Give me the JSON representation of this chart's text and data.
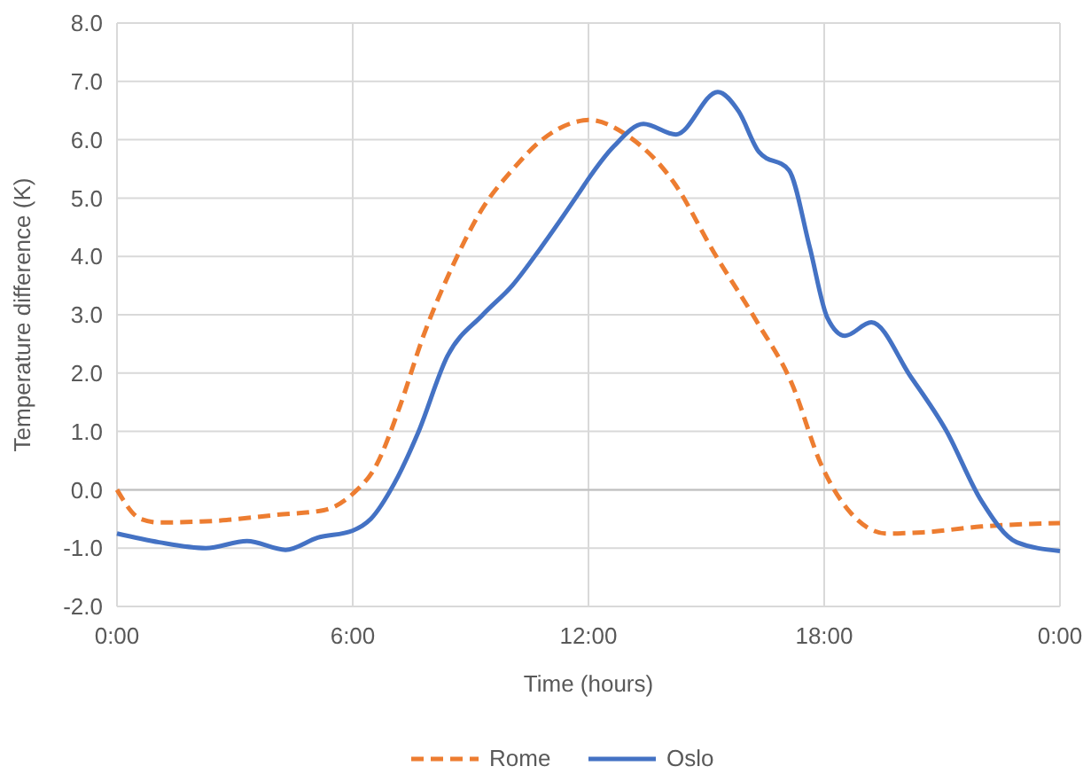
{
  "chart_data": {
    "type": "line",
    "xlabel": "Time (hours)",
    "ylabel": "Temperature difference (K)",
    "xlim": [
      0,
      24
    ],
    "xticks": [
      {
        "value": 0,
        "label": "0:00"
      },
      {
        "value": 6,
        "label": "6:00"
      },
      {
        "value": 12,
        "label": "12:00"
      },
      {
        "value": 18,
        "label": "18:00"
      },
      {
        "value": 24,
        "label": "0:00"
      }
    ],
    "ylim": [
      -2,
      8
    ],
    "yticks": [
      {
        "value": -2,
        "label": "-2.0"
      },
      {
        "value": -1,
        "label": "-1.0"
      },
      {
        "value": 0,
        "label": "0.0"
      },
      {
        "value": 1,
        "label": "1.0"
      },
      {
        "value": 2,
        "label": "2.0"
      },
      {
        "value": 3,
        "label": "3.0"
      },
      {
        "value": 4,
        "label": "4.0"
      },
      {
        "value": 5,
        "label": "5.0"
      },
      {
        "value": 6,
        "label": "6.0"
      },
      {
        "value": 7,
        "label": "7.0"
      },
      {
        "value": 8,
        "label": "8.0"
      }
    ],
    "grid": true,
    "legend": "bottom",
    "series": [
      {
        "name": "Rome",
        "color": "#ed7d31",
        "line_style": "dashed",
        "x": [
          0,
          0.6,
          1.07,
          2.56,
          4.06,
          5.26,
          6,
          6.6,
          7.2,
          7.8,
          8.56,
          9.3,
          10.06,
          10.8,
          11.7,
          12,
          12.95,
          14.16,
          15.2,
          16.27,
          17.17,
          17.93,
          18.68,
          19.6,
          20.5,
          22,
          24
        ],
        "values": [
          0,
          -0.5,
          -0.56,
          -0.53,
          -0.43,
          -0.35,
          -0.07,
          0.42,
          1.43,
          2.64,
          3.86,
          4.82,
          5.48,
          5.99,
          6.31,
          6.34,
          6.09,
          5.28,
          4.06,
          2.9,
          1.83,
          0.42,
          -0.4,
          -0.75,
          -0.73,
          -0.63,
          -0.57
        ]
      },
      {
        "name": "Oslo",
        "color": "#4472c4",
        "line_style": "solid",
        "x": [
          0,
          1.07,
          2.26,
          3.31,
          4.29,
          5.11,
          6,
          6.46,
          7.06,
          7.66,
          8.41,
          9.31,
          10.06,
          10.8,
          11.8,
          12,
          12.65,
          13.4,
          14.23,
          15.29,
          15.82,
          16.34,
          17.1,
          17.63,
          18.08,
          18.53,
          19.2,
          20.2,
          21.1,
          22,
          22.9,
          24
        ],
        "values": [
          -0.75,
          -0.9,
          -1,
          -0.88,
          -1.03,
          -0.82,
          -0.7,
          -0.5,
          0.11,
          0.97,
          2.29,
          3,
          3.5,
          4.16,
          5.13,
          5.33,
          5.89,
          6.27,
          6.09,
          6.82,
          6.49,
          5.79,
          5.48,
          4.16,
          2.95,
          2.64,
          2.87,
          1.94,
          1.02,
          -0.19,
          -0.9,
          -1.05
        ]
      }
    ]
  }
}
